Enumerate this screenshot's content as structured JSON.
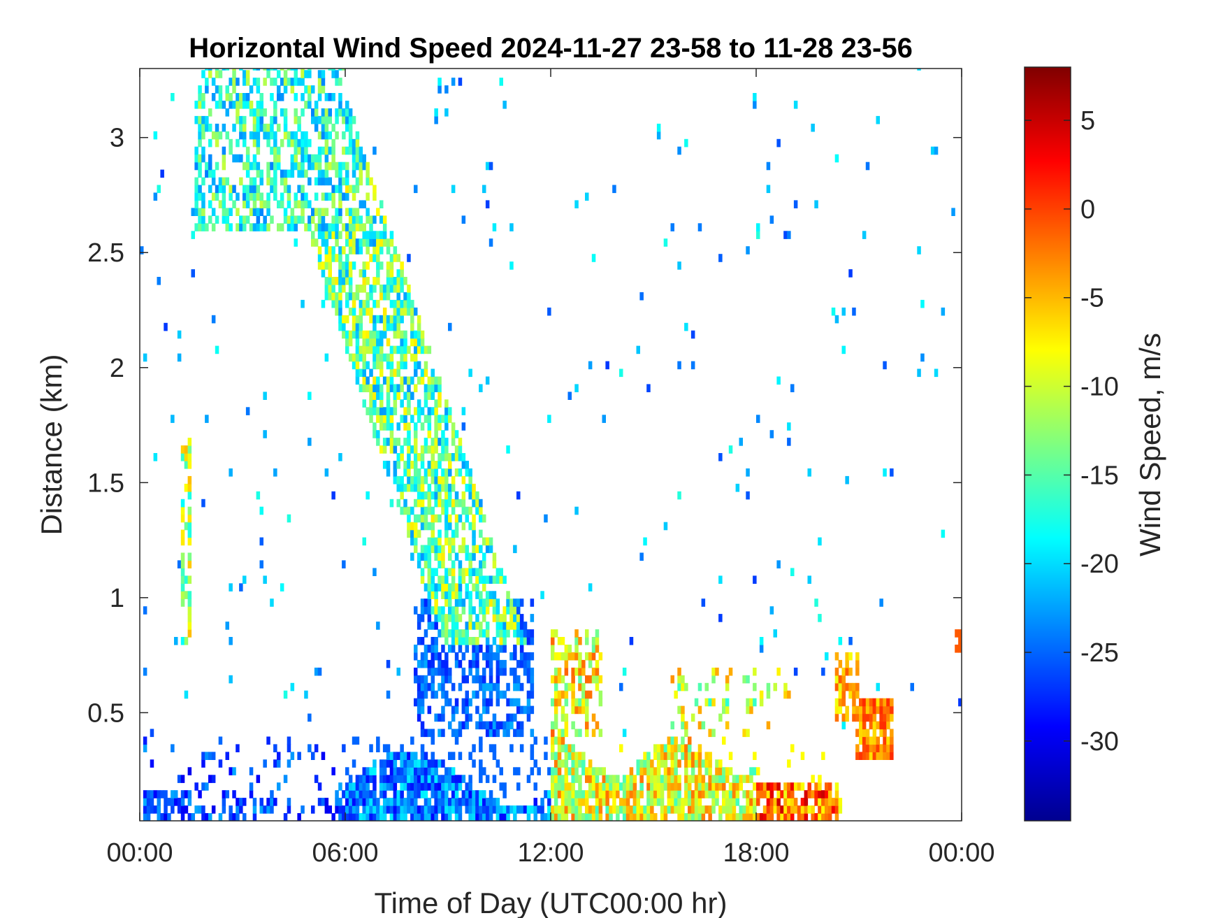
{
  "chart_data": {
    "type": "heatmap",
    "title": "Horizontal Wind Speed 2024-11-27 23-58 to 11-28 23-56",
    "xlabel": "Time of Day (UTC00:00 hr)",
    "ylabel": "Distance (km)",
    "xlim": [
      0,
      24
    ],
    "ylim": [
      0.03,
      3.3
    ],
    "x_ticks": [
      0,
      6,
      12,
      18,
      24
    ],
    "x_tick_labels": [
      "00:00",
      "06:00",
      "12:00",
      "18:00",
      "00:00"
    ],
    "y_ticks": [
      0.5,
      1,
      1.5,
      2,
      2.5,
      3
    ],
    "y_tick_labels": [
      "0.5",
      "1",
      "1.5",
      "2",
      "2.5",
      "3"
    ],
    "colorbar": {
      "label": "Wind Speed, m/s",
      "range": [
        -34.5,
        8
      ],
      "colormap": "jet",
      "ticks": [
        5,
        0,
        -5,
        -10,
        -15,
        -20,
        -25,
        -30
      ],
      "tick_labels": [
        "5",
        "0",
        "-5",
        "-10",
        "-15",
        "-20",
        "-25",
        "-30"
      ]
    },
    "regions": [
      {
        "name": "upper-ascending-band",
        "x_range": [
          1.5,
          6
        ],
        "y_range": [
          2.6,
          3.3
        ],
        "typical_value": -17
      },
      {
        "name": "descending-band",
        "x_range": [
          5.5,
          9
        ],
        "y_range": [
          1.8,
          3.0
        ],
        "typical_value": -14
      },
      {
        "name": "mid-band",
        "x_range": [
          7.5,
          11.5
        ],
        "y_range": [
          0.9,
          2.1
        ],
        "typical_value": -16
      },
      {
        "name": "low-layer-morning",
        "x_range": [
          6,
          12
        ],
        "y_range": [
          0.05,
          0.4
        ],
        "typical_value": -24
      },
      {
        "name": "low-layer-afternoon",
        "x_range": [
          12.5,
          19
        ],
        "y_range": [
          0.05,
          0.4
        ],
        "typical_value": -8
      },
      {
        "name": "low-layer-evening",
        "x_range": [
          18,
          20.5
        ],
        "y_range": [
          0.05,
          0.25
        ],
        "typical_value": -2
      },
      {
        "name": "isolated-evening-cell",
        "x_range": [
          21,
          22
        ],
        "y_range": [
          0.3,
          0.6
        ],
        "typical_value": -3
      }
    ]
  }
}
